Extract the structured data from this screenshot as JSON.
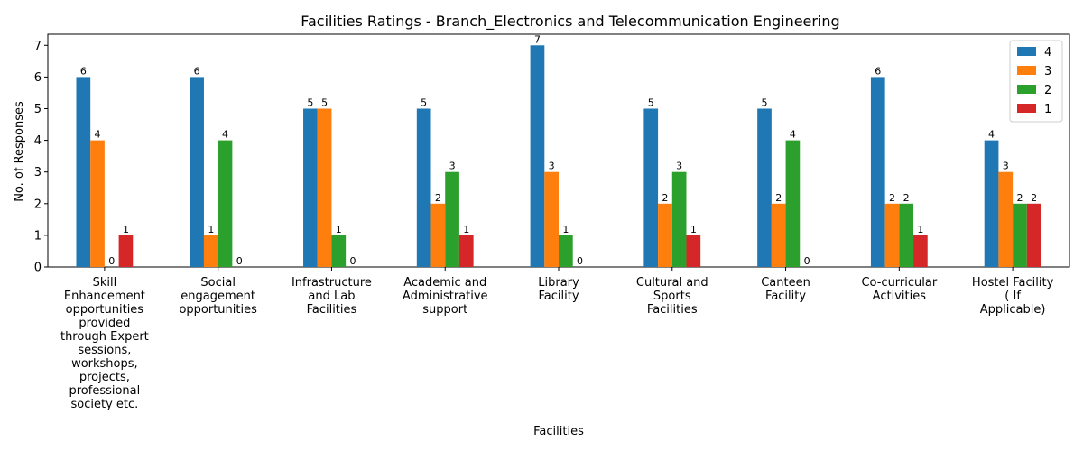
{
  "chart_data": {
    "type": "bar",
    "title": "Facilities Ratings - Branch_Electronics and Telecommunication Engineering",
    "xlabel": "Facilities",
    "ylabel": "No. of Responses",
    "ylim": [
      0,
      7.35
    ],
    "yticks": [
      0,
      1,
      2,
      3,
      4,
      5,
      6,
      7
    ],
    "grid": false,
    "legend_position": "top-right",
    "categories": [
      [
        "Skill",
        "Enhancement",
        "opportunities",
        "provided",
        "through Expert",
        "sessions,",
        "workshops,",
        "projects,",
        "professional",
        "society etc."
      ],
      [
        "Social",
        "engagement",
        "opportunities"
      ],
      [
        "Infrastructure",
        "and Lab",
        "Facilities"
      ],
      [
        "Academic and",
        "Administrative",
        "support"
      ],
      [
        "Library",
        "Facility"
      ],
      [
        "Cultural and",
        "Sports",
        "Facilities"
      ],
      [
        "Canteen",
        "Facility"
      ],
      [
        "Co-curricular",
        "Activities"
      ],
      [
        "Hostel Facility",
        "( If",
        "Applicable)"
      ]
    ],
    "series": [
      {
        "name": "4",
        "color": "#1f77b4",
        "values": [
          6,
          6,
          5,
          5,
          7,
          5,
          5,
          6,
          4
        ]
      },
      {
        "name": "3",
        "color": "#ff7f0e",
        "values": [
          4,
          1,
          5,
          2,
          3,
          2,
          2,
          2,
          3
        ]
      },
      {
        "name": "2",
        "color": "#2ca02c",
        "values": [
          0,
          4,
          1,
          3,
          1,
          3,
          4,
          2,
          2
        ]
      },
      {
        "name": "1",
        "color": "#d62728",
        "values": [
          1,
          0,
          0,
          1,
          0,
          1,
          0,
          1,
          2
        ]
      }
    ]
  }
}
